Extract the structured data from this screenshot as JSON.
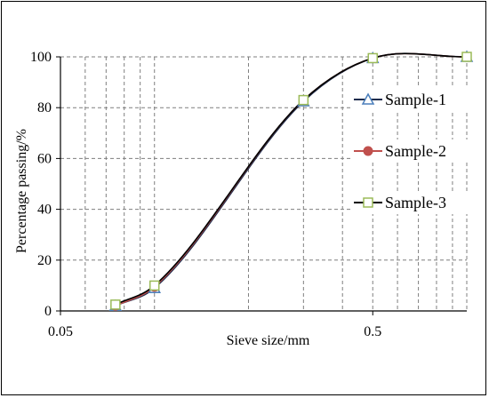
{
  "chart_data": {
    "type": "line",
    "xlabel": "Sieve size/mm",
    "ylabel": "Percentage passing/%",
    "x_scale": "log",
    "xlim": [
      0.05,
      1.0
    ],
    "ylim": [
      0,
      100
    ],
    "x_ticks": [
      "0.05",
      "0.5"
    ],
    "y_ticks": [
      "0",
      "20",
      "40",
      "60",
      "80",
      "100"
    ],
    "grid": true,
    "legend_position": "right",
    "x": [
      0.075,
      0.1,
      0.3,
      0.5,
      1.0
    ],
    "series": [
      {
        "name": "Sample-1",
        "values": [
          2,
          9,
          82.5,
          99.5,
          100
        ],
        "color": "#1f2d4d",
        "marker": "triangle",
        "marker_color": "#4a7ebb"
      },
      {
        "name": "Sample-2",
        "values": [
          2,
          9.5,
          83,
          99.5,
          100
        ],
        "color": "#c0504d",
        "marker": "circle",
        "marker_color": "#c0504d"
      },
      {
        "name": "Sample-3",
        "values": [
          2.5,
          10,
          83,
          99.5,
          100
        ],
        "color": "#000000",
        "marker": "square",
        "marker_color": "#9bbb59"
      }
    ]
  }
}
